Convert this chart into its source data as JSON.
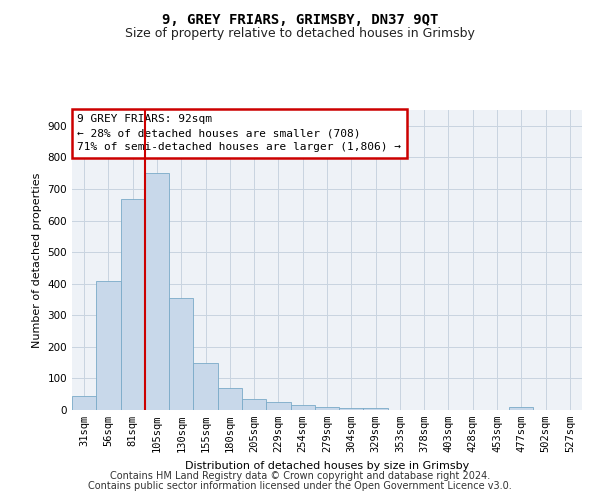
{
  "title": "9, GREY FRIARS, GRIMSBY, DN37 9QT",
  "subtitle": "Size of property relative to detached houses in Grimsby",
  "xlabel": "Distribution of detached houses by size in Grimsby",
  "ylabel": "Number of detached properties",
  "footer_line1": "Contains HM Land Registry data © Crown copyright and database right 2024.",
  "footer_line2": "Contains public sector information licensed under the Open Government Licence v3.0.",
  "bar_labels": [
    "31sqm",
    "56sqm",
    "81sqm",
    "105sqm",
    "130sqm",
    "155sqm",
    "180sqm",
    "205sqm",
    "229sqm",
    "254sqm",
    "279sqm",
    "304sqm",
    "329sqm",
    "353sqm",
    "378sqm",
    "403sqm",
    "428sqm",
    "453sqm",
    "477sqm",
    "502sqm",
    "527sqm"
  ],
  "bar_values": [
    45,
    410,
    668,
    750,
    355,
    150,
    70,
    35,
    25,
    15,
    10,
    7,
    5,
    0,
    0,
    0,
    0,
    0,
    8,
    0,
    0
  ],
  "bar_color": "#c8d8ea",
  "bar_edge_color": "#7aaac8",
  "grid_color": "#c8d4e0",
  "background_color": "#eef2f7",
  "vline_color": "#cc0000",
  "vline_pos": 2.5,
  "annotation_text": "9 GREY FRIARS: 92sqm\n← 28% of detached houses are smaller (708)\n71% of semi-detached houses are larger (1,806) →",
  "annotation_box_color": "#cc0000",
  "ylim": [
    0,
    950
  ],
  "yticks": [
    0,
    100,
    200,
    300,
    400,
    500,
    600,
    700,
    800,
    900
  ],
  "title_fontsize": 10,
  "subtitle_fontsize": 9,
  "annotation_fontsize": 8,
  "tick_fontsize": 7.5,
  "axis_label_fontsize": 8,
  "footer_fontsize": 7
}
